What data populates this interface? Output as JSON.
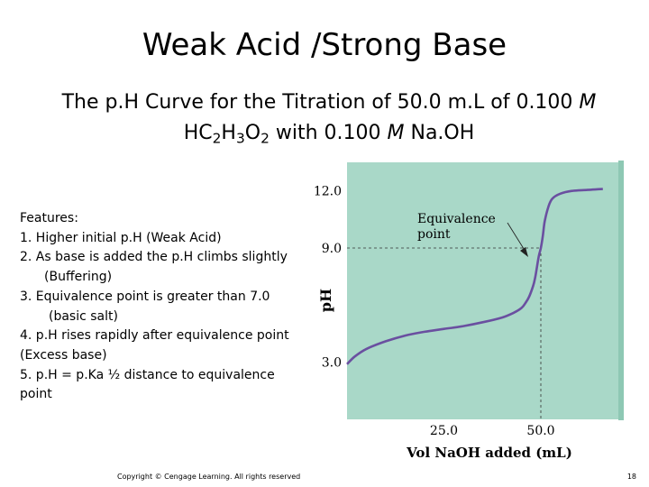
{
  "slide": {
    "title": "Weak Acid /Strong Base",
    "subtitle_line1_pre": "The p.H Curve for the Titration of 50.0 m.L of 0.100 ",
    "subtitle_line1_M": "M",
    "subtitle_line2": {
      "hc": "HC",
      "sub2a": "2",
      "h": "H",
      "sub3": "3",
      "o": "O",
      "sub2b": "2",
      "mid": " with 0.100 ",
      "M": "M",
      "tail": " Na.OH"
    },
    "features": {
      "heading": "Features:",
      "f1": "1.   Higher initial p.H (Weak Acid)",
      "f2a": "2.   As base is added the p.H climbs slightly",
      "f2b": "(Buffering)",
      "f3a": "3.   Equivalence point is greater than 7.0",
      "f3b": "(basic salt)",
      "f4a": "4.    p.H rises rapidly after equivalence point",
      "f4b": "(Excess base)",
      "f5a": "5.    p.H = p.Ka    ½ distance to equivalence",
      "f5b": "point"
    },
    "copyright": "Copyright © Cengage Learning. All rights reserved",
    "page_number": "18"
  },
  "colors": {
    "plot_bg": "#a9d8c8",
    "plot_edge": "#8ec8b4",
    "curve": "#6a4fa0",
    "text": "#000000"
  },
  "chart_data": {
    "type": "line",
    "xlabel": "Vol NaOH added (mL)",
    "ylabel": "pH",
    "xlim": [
      0,
      70
    ],
    "ylim": [
      0,
      13.5
    ],
    "xticks": [
      25.0,
      50.0
    ],
    "xtick_labels": [
      "25.0",
      "50.0"
    ],
    "yticks": [
      3.0,
      9.0,
      12.0
    ],
    "ytick_labels": [
      "3.0",
      "9.0",
      "12.0"
    ],
    "annotation": {
      "text_line1": "Equivalence",
      "text_line2": "point",
      "x": 50.0,
      "y": 9.0
    },
    "series": [
      {
        "x": [
          0,
          2,
          5,
          10,
          15,
          20,
          25,
          30,
          35,
          40,
          43,
          45,
          46,
          47,
          48,
          48.5,
          49,
          49.5,
          50,
          50.5,
          51,
          52,
          53,
          55,
          58,
          62,
          66
        ],
        "y": [
          2.9,
          3.3,
          3.7,
          4.1,
          4.4,
          4.6,
          4.75,
          4.9,
          5.1,
          5.35,
          5.6,
          5.85,
          6.1,
          6.45,
          7.0,
          7.4,
          8.0,
          8.6,
          9.0,
          9.6,
          10.4,
          11.2,
          11.6,
          11.85,
          12.0,
          12.05,
          12.1
        ]
      }
    ]
  }
}
